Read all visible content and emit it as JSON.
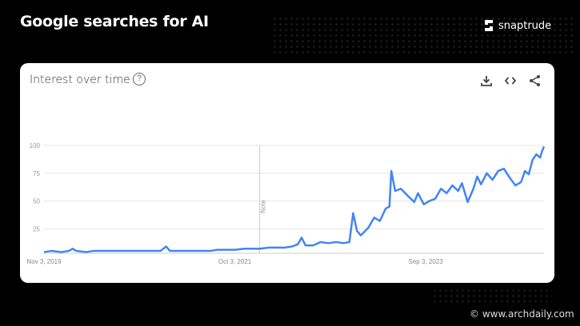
{
  "headline": "Google searches for AI",
  "brand": "snaptrude",
  "card": {
    "title": "Interest over time",
    "help_icon": "question-circle-icon",
    "actions": [
      "download-icon",
      "embed-code-icon",
      "share-icon"
    ]
  },
  "credit": "© www.archdaily.com",
  "chart_data": {
    "type": "line",
    "title": "Interest over time",
    "xlabel": "",
    "ylabel": "",
    "ylim": [
      0,
      100
    ],
    "xlim": [
      "2019-11-03",
      "2024-11-10"
    ],
    "y_ticks": [
      "25",
      "50",
      "75",
      "100"
    ],
    "x_ticks": [
      {
        "date": "2019-11-03",
        "label": "Nov 3, 2019"
      },
      {
        "date": "2021-10-03",
        "label": "Oct 3, 2021"
      },
      {
        "date": "2023-09-03",
        "label": "Sep 3, 2023"
      }
    ],
    "annotation": {
      "date": "2022-01-02",
      "label": "Note"
    },
    "grid": true,
    "color": "#4285f4",
    "series": [
      {
        "points": [
          [
            "2019-11-03",
            5
          ],
          [
            "2019-12-01",
            6
          ],
          [
            "2020-01-05",
            5
          ],
          [
            "2020-02-02",
            6
          ],
          [
            "2020-02-16",
            8
          ],
          [
            "2020-03-01",
            6
          ],
          [
            "2020-04-05",
            5
          ],
          [
            "2020-05-03",
            6
          ],
          [
            "2020-06-07",
            6
          ],
          [
            "2020-07-05",
            6
          ],
          [
            "2020-08-02",
            6
          ],
          [
            "2020-09-06",
            6
          ],
          [
            "2020-10-04",
            6
          ],
          [
            "2020-11-01",
            6
          ],
          [
            "2020-12-06",
            6
          ],
          [
            "2021-01-03",
            6
          ],
          [
            "2021-01-24",
            10
          ],
          [
            "2021-02-07",
            6
          ],
          [
            "2021-03-07",
            6
          ],
          [
            "2021-04-04",
            6
          ],
          [
            "2021-05-02",
            6
          ],
          [
            "2021-06-06",
            6
          ],
          [
            "2021-07-04",
            6
          ],
          [
            "2021-08-01",
            7
          ],
          [
            "2021-09-05",
            7
          ],
          [
            "2021-10-03",
            7
          ],
          [
            "2021-11-07",
            8
          ],
          [
            "2021-12-05",
            8
          ],
          [
            "2022-01-02",
            8
          ],
          [
            "2022-02-06",
            9
          ],
          [
            "2022-03-06",
            9
          ],
          [
            "2022-04-03",
            9
          ],
          [
            "2022-05-01",
            10
          ],
          [
            "2022-05-22",
            12
          ],
          [
            "2022-06-05",
            18
          ],
          [
            "2022-06-19",
            11
          ],
          [
            "2022-07-17",
            11
          ],
          [
            "2022-08-14",
            14
          ],
          [
            "2022-09-11",
            13
          ],
          [
            "2022-10-09",
            14
          ],
          [
            "2022-11-06",
            13
          ],
          [
            "2022-11-27",
            14
          ],
          [
            "2022-12-11",
            40
          ],
          [
            "2022-12-25",
            24
          ],
          [
            "2023-01-08",
            20
          ],
          [
            "2023-02-05",
            27
          ],
          [
            "2023-02-26",
            36
          ],
          [
            "2023-03-19",
            33
          ],
          [
            "2023-04-09",
            44
          ],
          [
            "2023-04-23",
            46
          ],
          [
            "2023-04-30",
            78
          ],
          [
            "2023-05-14",
            60
          ],
          [
            "2023-06-04",
            62
          ],
          [
            "2023-07-02",
            55
          ],
          [
            "2023-07-23",
            50
          ],
          [
            "2023-08-06",
            58
          ],
          [
            "2023-08-27",
            48
          ],
          [
            "2023-09-17",
            51
          ],
          [
            "2023-10-08",
            53
          ],
          [
            "2023-10-29",
            62
          ],
          [
            "2023-11-19",
            58
          ],
          [
            "2023-12-10",
            65
          ],
          [
            "2023-12-31",
            60
          ],
          [
            "2024-01-14",
            67
          ],
          [
            "2024-02-04",
            50
          ],
          [
            "2024-02-25",
            62
          ],
          [
            "2024-03-10",
            73
          ],
          [
            "2024-03-24",
            66
          ],
          [
            "2024-04-14",
            76
          ],
          [
            "2024-05-05",
            70
          ],
          [
            "2024-05-26",
            78
          ],
          [
            "2024-06-16",
            80
          ],
          [
            "2024-07-07",
            72
          ],
          [
            "2024-07-28",
            65
          ],
          [
            "2024-08-18",
            68
          ],
          [
            "2024-09-01",
            78
          ],
          [
            "2024-09-15",
            75
          ],
          [
            "2024-09-29",
            88
          ],
          [
            "2024-10-13",
            93
          ],
          [
            "2024-10-27",
            90
          ],
          [
            "2024-11-03",
            96
          ],
          [
            "2024-11-10",
            100
          ]
        ]
      }
    ]
  }
}
